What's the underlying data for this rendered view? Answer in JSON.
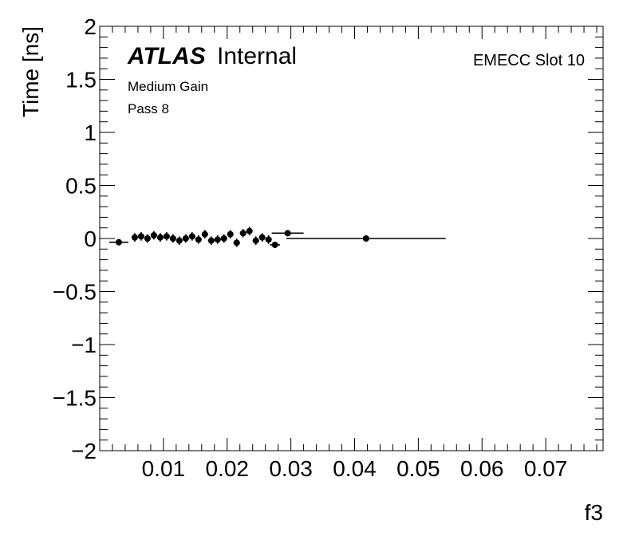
{
  "chart_data": {
    "type": "scatter",
    "title": "",
    "xlabel": "f3",
    "ylabel": "Time [ns]",
    "xlim": [
      0.0,
      0.079
    ],
    "ylim": [
      -2,
      2
    ],
    "x_ticks": [
      0.01,
      0.02,
      0.03,
      0.04,
      0.05,
      0.06,
      0.07
    ],
    "x_tick_labels": [
      "0.01",
      "0.02",
      "0.03",
      "0.04",
      "0.05",
      "0.06",
      "0.07"
    ],
    "y_ticks": [
      -2,
      -1.5,
      -1,
      -0.5,
      0,
      0.5,
      1,
      1.5,
      2
    ],
    "y_tick_labels": [
      "−2",
      "−1.5",
      "−1",
      "−0.5",
      "0",
      "0.5",
      "1",
      "1.5",
      "2"
    ],
    "grid": false,
    "marker_color": "#000000",
    "annotations": {
      "atlas_bold": "ATLAS",
      "atlas_rest": "Internal",
      "gain": "Medium Gain",
      "pass": "Pass 8",
      "slot": "EMECC Slot 10"
    },
    "points": [
      {
        "x": 0.003,
        "y": -0.035,
        "xerr": 0.0015,
        "yerr": 0.03
      },
      {
        "x": 0.0055,
        "y": 0.01,
        "xerr": 0.0005,
        "yerr": 0.04
      },
      {
        "x": 0.0065,
        "y": 0.02,
        "xerr": 0.0005,
        "yerr": 0.04
      },
      {
        "x": 0.0075,
        "y": 0.0,
        "xerr": 0.0005,
        "yerr": 0.04
      },
      {
        "x": 0.0085,
        "y": 0.03,
        "xerr": 0.0005,
        "yerr": 0.04
      },
      {
        "x": 0.0095,
        "y": 0.01,
        "xerr": 0.0005,
        "yerr": 0.04
      },
      {
        "x": 0.0105,
        "y": 0.02,
        "xerr": 0.0005,
        "yerr": 0.04
      },
      {
        "x": 0.0115,
        "y": 0.0,
        "xerr": 0.0005,
        "yerr": 0.04
      },
      {
        "x": 0.0125,
        "y": -0.02,
        "xerr": 0.0005,
        "yerr": 0.04
      },
      {
        "x": 0.0135,
        "y": 0.0,
        "xerr": 0.0005,
        "yerr": 0.04
      },
      {
        "x": 0.0145,
        "y": 0.02,
        "xerr": 0.0005,
        "yerr": 0.04
      },
      {
        "x": 0.0155,
        "y": -0.01,
        "xerr": 0.0005,
        "yerr": 0.04
      },
      {
        "x": 0.0165,
        "y": 0.04,
        "xerr": 0.0005,
        "yerr": 0.04
      },
      {
        "x": 0.0175,
        "y": -0.02,
        "xerr": 0.0005,
        "yerr": 0.04
      },
      {
        "x": 0.0185,
        "y": -0.01,
        "xerr": 0.0005,
        "yerr": 0.04
      },
      {
        "x": 0.0195,
        "y": 0.0,
        "xerr": 0.0005,
        "yerr": 0.04
      },
      {
        "x": 0.0205,
        "y": 0.04,
        "xerr": 0.0005,
        "yerr": 0.04
      },
      {
        "x": 0.0215,
        "y": -0.04,
        "xerr": 0.0005,
        "yerr": 0.04
      },
      {
        "x": 0.0225,
        "y": 0.05,
        "xerr": 0.0005,
        "yerr": 0.04
      },
      {
        "x": 0.0235,
        "y": 0.07,
        "xerr": 0.0005,
        "yerr": 0.04
      },
      {
        "x": 0.0245,
        "y": -0.02,
        "xerr": 0.0005,
        "yerr": 0.04
      },
      {
        "x": 0.0255,
        "y": 0.01,
        "xerr": 0.0005,
        "yerr": 0.04
      },
      {
        "x": 0.0265,
        "y": -0.01,
        "xerr": 0.0005,
        "yerr": 0.04
      },
      {
        "x": 0.0275,
        "y": -0.06,
        "xerr": 0.0008,
        "yerr": 0.03
      },
      {
        "x": 0.0295,
        "y": 0.05,
        "xerr": 0.0025,
        "yerr": 0.03
      },
      {
        "x": 0.0418,
        "y": 0.0,
        "xerr": 0.0125,
        "yerr": 0.03
      }
    ]
  }
}
